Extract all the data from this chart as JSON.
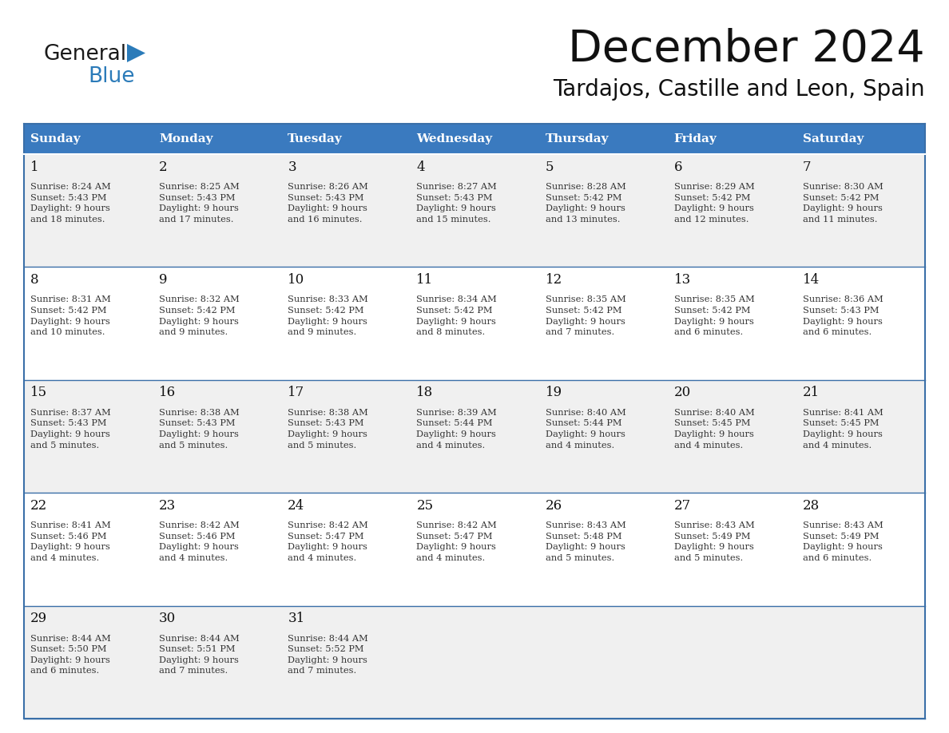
{
  "title": "December 2024",
  "subtitle": "Tardajos, Castille and Leon, Spain",
  "days_of_week": [
    "Sunday",
    "Monday",
    "Tuesday",
    "Wednesday",
    "Thursday",
    "Friday",
    "Saturday"
  ],
  "header_bg_color": "#3a7abf",
  "header_text_color": "#ffffff",
  "row_bg_colors": [
    "#f0f0f0",
    "#ffffff",
    "#f0f0f0",
    "#ffffff",
    "#f0f0f0"
  ],
  "border_color": "#3a6fa8",
  "text_color": "#333333",
  "day_num_color": "#111111",
  "calendar_data": [
    {
      "day": 1,
      "col": 0,
      "row": 0,
      "sunrise": "8:24 AM",
      "sunset": "5:43 PM",
      "daylight": "9 hours and 18 minutes."
    },
    {
      "day": 2,
      "col": 1,
      "row": 0,
      "sunrise": "8:25 AM",
      "sunset": "5:43 PM",
      "daylight": "9 hours and 17 minutes."
    },
    {
      "day": 3,
      "col": 2,
      "row": 0,
      "sunrise": "8:26 AM",
      "sunset": "5:43 PM",
      "daylight": "9 hours and 16 minutes."
    },
    {
      "day": 4,
      "col": 3,
      "row": 0,
      "sunrise": "8:27 AM",
      "sunset": "5:43 PM",
      "daylight": "9 hours and 15 minutes."
    },
    {
      "day": 5,
      "col": 4,
      "row": 0,
      "sunrise": "8:28 AM",
      "sunset": "5:42 PM",
      "daylight": "9 hours and 13 minutes."
    },
    {
      "day": 6,
      "col": 5,
      "row": 0,
      "sunrise": "8:29 AM",
      "sunset": "5:42 PM",
      "daylight": "9 hours and 12 minutes."
    },
    {
      "day": 7,
      "col": 6,
      "row": 0,
      "sunrise": "8:30 AM",
      "sunset": "5:42 PM",
      "daylight": "9 hours and 11 minutes."
    },
    {
      "day": 8,
      "col": 0,
      "row": 1,
      "sunrise": "8:31 AM",
      "sunset": "5:42 PM",
      "daylight": "9 hours and 10 minutes."
    },
    {
      "day": 9,
      "col": 1,
      "row": 1,
      "sunrise": "8:32 AM",
      "sunset": "5:42 PM",
      "daylight": "9 hours and 9 minutes."
    },
    {
      "day": 10,
      "col": 2,
      "row": 1,
      "sunrise": "8:33 AM",
      "sunset": "5:42 PM",
      "daylight": "9 hours and 9 minutes."
    },
    {
      "day": 11,
      "col": 3,
      "row": 1,
      "sunrise": "8:34 AM",
      "sunset": "5:42 PM",
      "daylight": "9 hours and 8 minutes."
    },
    {
      "day": 12,
      "col": 4,
      "row": 1,
      "sunrise": "8:35 AM",
      "sunset": "5:42 PM",
      "daylight": "9 hours and 7 minutes."
    },
    {
      "day": 13,
      "col": 5,
      "row": 1,
      "sunrise": "8:35 AM",
      "sunset": "5:42 PM",
      "daylight": "9 hours and 6 minutes."
    },
    {
      "day": 14,
      "col": 6,
      "row": 1,
      "sunrise": "8:36 AM",
      "sunset": "5:43 PM",
      "daylight": "9 hours and 6 minutes."
    },
    {
      "day": 15,
      "col": 0,
      "row": 2,
      "sunrise": "8:37 AM",
      "sunset": "5:43 PM",
      "daylight": "9 hours and 5 minutes."
    },
    {
      "day": 16,
      "col": 1,
      "row": 2,
      "sunrise": "8:38 AM",
      "sunset": "5:43 PM",
      "daylight": "9 hours and 5 minutes."
    },
    {
      "day": 17,
      "col": 2,
      "row": 2,
      "sunrise": "8:38 AM",
      "sunset": "5:43 PM",
      "daylight": "9 hours and 5 minutes."
    },
    {
      "day": 18,
      "col": 3,
      "row": 2,
      "sunrise": "8:39 AM",
      "sunset": "5:44 PM",
      "daylight": "9 hours and 4 minutes."
    },
    {
      "day": 19,
      "col": 4,
      "row": 2,
      "sunrise": "8:40 AM",
      "sunset": "5:44 PM",
      "daylight": "9 hours and 4 minutes."
    },
    {
      "day": 20,
      "col": 5,
      "row": 2,
      "sunrise": "8:40 AM",
      "sunset": "5:45 PM",
      "daylight": "9 hours and 4 minutes."
    },
    {
      "day": 21,
      "col": 6,
      "row": 2,
      "sunrise": "8:41 AM",
      "sunset": "5:45 PM",
      "daylight": "9 hours and 4 minutes."
    },
    {
      "day": 22,
      "col": 0,
      "row": 3,
      "sunrise": "8:41 AM",
      "sunset": "5:46 PM",
      "daylight": "9 hours and 4 minutes."
    },
    {
      "day": 23,
      "col": 1,
      "row": 3,
      "sunrise": "8:42 AM",
      "sunset": "5:46 PM",
      "daylight": "9 hours and 4 minutes."
    },
    {
      "day": 24,
      "col": 2,
      "row": 3,
      "sunrise": "8:42 AM",
      "sunset": "5:47 PM",
      "daylight": "9 hours and 4 minutes."
    },
    {
      "day": 25,
      "col": 3,
      "row": 3,
      "sunrise": "8:42 AM",
      "sunset": "5:47 PM",
      "daylight": "9 hours and 4 minutes."
    },
    {
      "day": 26,
      "col": 4,
      "row": 3,
      "sunrise": "8:43 AM",
      "sunset": "5:48 PM",
      "daylight": "9 hours and 5 minutes."
    },
    {
      "day": 27,
      "col": 5,
      "row": 3,
      "sunrise": "8:43 AM",
      "sunset": "5:49 PM",
      "daylight": "9 hours and 5 minutes."
    },
    {
      "day": 28,
      "col": 6,
      "row": 3,
      "sunrise": "8:43 AM",
      "sunset": "5:49 PM",
      "daylight": "9 hours and 6 minutes."
    },
    {
      "day": 29,
      "col": 0,
      "row": 4,
      "sunrise": "8:44 AM",
      "sunset": "5:50 PM",
      "daylight": "9 hours and 6 minutes."
    },
    {
      "day": 30,
      "col": 1,
      "row": 4,
      "sunrise": "8:44 AM",
      "sunset": "5:51 PM",
      "daylight": "9 hours and 7 minutes."
    },
    {
      "day": 31,
      "col": 2,
      "row": 4,
      "sunrise": "8:44 AM",
      "sunset": "5:52 PM",
      "daylight": "9 hours and 7 minutes."
    }
  ],
  "num_rows": 5,
  "num_cols": 7,
  "logo_text_general": "General",
  "logo_text_blue": "Blue",
  "logo_color_general": "#1a1a1a",
  "logo_color_blue": "#2b7bb9",
  "logo_triangle_color": "#2b7bb9"
}
